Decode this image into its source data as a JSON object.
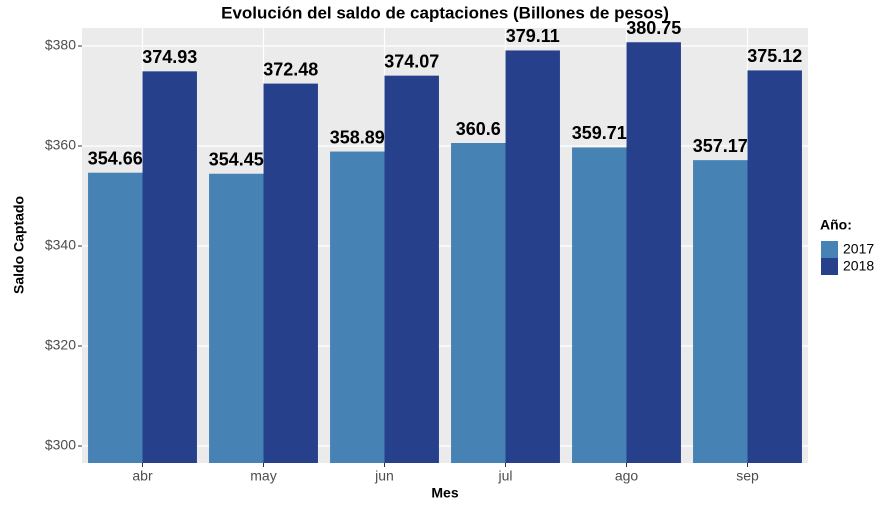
{
  "chart_data": {
    "type": "bar",
    "title": "Evolución del saldo de captaciones (Billones de pesos)",
    "x_label": "Mes",
    "y_label": "Saldo Captado",
    "legend_title": "Año:",
    "categories": [
      "abr",
      "may",
      "jun",
      "jul",
      "ago",
      "sep"
    ],
    "series": [
      {
        "name": "2017",
        "color": "#4682b4",
        "values": [
          354.66,
          354.45,
          358.89,
          360.6,
          359.71,
          357.17
        ]
      },
      {
        "name": "2018",
        "color": "#27408b",
        "values": [
          374.93,
          372.48,
          374.07,
          379.11,
          380.75,
          375.12
        ]
      }
    ],
    "ylim": [
      296.6,
      383.6
    ],
    "yticks": [
      {
        "value": 300,
        "label": "$300"
      },
      {
        "value": 320,
        "label": "$320"
      },
      {
        "value": 340,
        "label": "$340"
      },
      {
        "value": 360,
        "label": "$360"
      },
      {
        "value": 380,
        "label": "$380"
      }
    ],
    "grid": true,
    "legend": "right"
  }
}
